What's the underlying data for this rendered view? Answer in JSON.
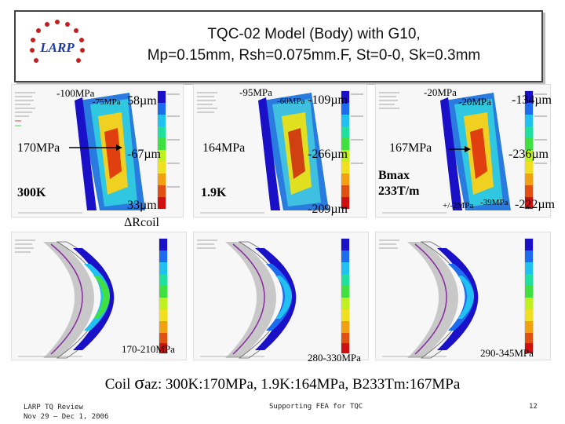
{
  "title": {
    "line1": "TQC-02 Model (Body) with G10,",
    "line2": "Mp=0.15mm, Rsh=0.075mm.F, St=0-0, Sk=0.3mm"
  },
  "logo": {
    "text": "LARP"
  },
  "annotations": {
    "p1_stress_top": "-100MPa",
    "p1_stress_mid": "-75MPa",
    "p1_disp_top": "58µm",
    "p1_stress_main": "170MPa",
    "p1_disp_mid": "-67µm",
    "p1_temp": "300K",
    "p1_disp_low": "33µm",
    "p1_delta": "ΔRcoil",
    "p2_stress_top": "-95MPa",
    "p2_stress_mid": "-60MPa",
    "p2_disp_top": "-109µm",
    "p2_stress_main": "164MPa",
    "p2_disp_mid": "-266µm",
    "p2_temp": "1.9K",
    "p2_disp_low": "-209µm",
    "p3_stress_top": "-20MPa",
    "p3_stress_mid": "-20MPa",
    "p3_disp_top": "-134µm",
    "p3_stress_main": "167MPa",
    "p3_disp_mid": "-236µm",
    "p3_field": "Bmax 233T/m",
    "p3_stress_low1": "+/-2MPa",
    "p3_stress_low2": "-39MPa",
    "p3_disp_low": "-222µm",
    "p4_range": "170-210MPa",
    "p5_range": "280-330MPa",
    "p6_range": "290-345MPa"
  },
  "caption": {
    "prefix": "Coil ",
    "sigma": "σ",
    "text": "az: 300K:170MPa, 1.9K:164MPa, B233Tm:167MPa"
  },
  "footer": {
    "left_line1": "LARP TQ Review",
    "left_line2": "Nov 29 – Dec 1, 2006",
    "center": "Supporting FEA for TQC",
    "page": "12"
  },
  "colors": {
    "logo_red": "#c0201f",
    "logo_blue": "#1a3aa8",
    "contour": [
      "#1a10c8",
      "#1d6cf0",
      "#20c0f0",
      "#20e0a0",
      "#40e040",
      "#c0f020",
      "#f0e020",
      "#f0a010",
      "#e05010",
      "#d01010"
    ]
  }
}
